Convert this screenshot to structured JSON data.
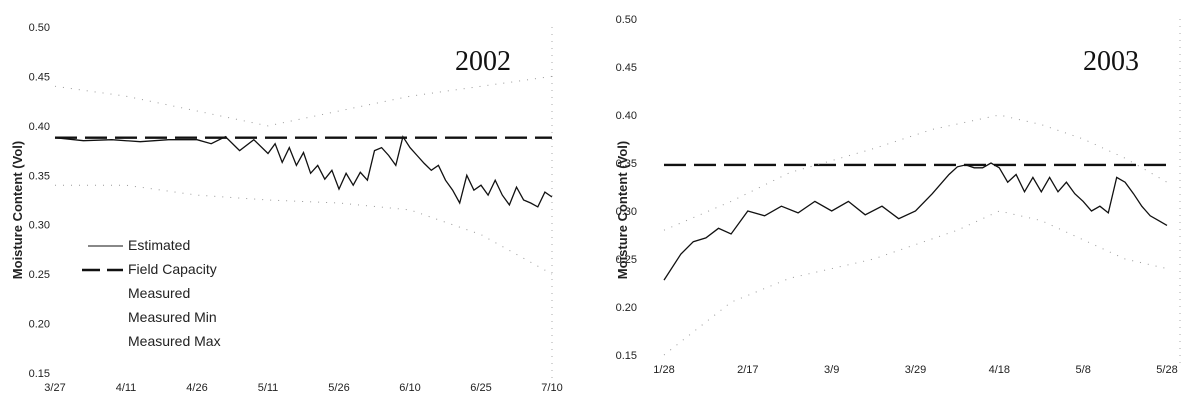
{
  "chart_data": [
    {
      "type": "line",
      "title": "2002",
      "ylabel": "Moisture Content (Vol)",
      "xlabel": "",
      "ylim": [
        0.15,
        0.5
      ],
      "yticks": [
        "0.50",
        "0.45",
        "0.40",
        "0.35",
        "0.30",
        "0.25",
        "0.20",
        "0.15"
      ],
      "yticks_values": [
        0.5,
        0.45,
        0.4,
        0.35,
        0.3,
        0.25,
        0.2,
        0.15
      ],
      "xticks": [
        "3/27",
        "4/11",
        "4/26",
        "5/11",
        "5/26",
        "6/10",
        "6/25",
        "7/10"
      ],
      "legend": {
        "placement": "lower-left",
        "entries": [
          "Estimated",
          "Field Capacity",
          "Measured",
          "Measured Min",
          "Measured Max"
        ]
      },
      "series": [
        {
          "name": "Estimated",
          "style": "solid",
          "x": [
            0,
            0.4,
            0.8,
            1.2,
            1.6,
            2.0,
            2.2,
            2.4,
            2.6,
            2.8,
            3.0,
            3.1,
            3.2,
            3.3,
            3.4,
            3.5,
            3.6,
            3.7,
            3.8,
            3.9,
            4.0,
            4.1,
            4.2,
            4.3,
            4.4,
            4.5,
            4.6,
            4.7,
            4.8,
            4.9,
            5.0,
            5.1,
            5.2,
            5.3,
            5.4,
            5.5,
            5.6,
            5.7,
            5.8,
            5.9,
            6.0,
            6.1,
            6.2,
            6.3,
            6.4,
            6.5,
            6.6,
            6.7,
            6.8,
            6.9,
            7.0
          ],
          "values": [
            0.388,
            0.385,
            0.386,
            0.384,
            0.386,
            0.386,
            0.382,
            0.389,
            0.375,
            0.386,
            0.372,
            0.382,
            0.363,
            0.378,
            0.36,
            0.373,
            0.352,
            0.36,
            0.346,
            0.355,
            0.336,
            0.352,
            0.34,
            0.353,
            0.345,
            0.375,
            0.378,
            0.37,
            0.36,
            0.389,
            0.378,
            0.37,
            0.362,
            0.355,
            0.36,
            0.345,
            0.335,
            0.322,
            0.35,
            0.335,
            0.34,
            0.33,
            0.345,
            0.33,
            0.32,
            0.338,
            0.325,
            0.322,
            0.318,
            0.333,
            0.328
          ]
        },
        {
          "name": "Field Capacity",
          "style": "dashed",
          "x": [
            0,
            7
          ],
          "values": [
            0.388,
            0.388
          ]
        },
        {
          "name": "Measured Min",
          "style": "dotted",
          "x": [
            0,
            1,
            2,
            3,
            4,
            5,
            6,
            7
          ],
          "values": [
            0.34,
            0.34,
            0.33,
            0.325,
            0.322,
            0.315,
            0.29,
            0.25
          ]
        },
        {
          "name": "Measured Max",
          "style": "dotted",
          "x": [
            0,
            1,
            2,
            3,
            4,
            5,
            6,
            7
          ],
          "values": [
            0.44,
            0.43,
            0.415,
            0.4,
            0.415,
            0.43,
            0.44,
            0.45
          ]
        }
      ]
    },
    {
      "type": "line",
      "title": "2003",
      "ylabel": "Moisture Content (Vol)",
      "xlabel": "",
      "ylim": [
        0.15,
        0.5
      ],
      "yticks": [
        "0.50",
        "0.45",
        "0.40",
        "0.35",
        "0.30",
        "0.25",
        "0.20",
        "0.15"
      ],
      "yticks_values": [
        0.5,
        0.45,
        0.4,
        0.35,
        0.3,
        0.25,
        0.2,
        0.15
      ],
      "xticks": [
        "1/28",
        "2/17",
        "3/9",
        "3/29",
        "4/18",
        "5/8",
        "5/28"
      ],
      "series": [
        {
          "name": "Estimated",
          "style": "solid",
          "x": [
            0,
            0.2,
            0.35,
            0.5,
            0.65,
            0.8,
            1.0,
            1.2,
            1.4,
            1.6,
            1.8,
            2.0,
            2.2,
            2.4,
            2.6,
            2.8,
            3.0,
            3.2,
            3.4,
            3.5,
            3.6,
            3.7,
            3.8,
            3.9,
            4.0,
            4.1,
            4.2,
            4.3,
            4.4,
            4.5,
            4.6,
            4.7,
            4.8,
            4.9,
            5.0,
            5.1,
            5.2,
            5.3,
            5.4,
            5.5,
            5.6,
            5.7,
            5.8,
            5.9,
            6.0
          ],
          "values": [
            0.228,
            0.255,
            0.268,
            0.272,
            0.282,
            0.276,
            0.3,
            0.295,
            0.305,
            0.298,
            0.31,
            0.3,
            0.31,
            0.296,
            0.305,
            0.292,
            0.3,
            0.318,
            0.338,
            0.346,
            0.348,
            0.345,
            0.345,
            0.35,
            0.345,
            0.33,
            0.338,
            0.32,
            0.335,
            0.32,
            0.335,
            0.32,
            0.33,
            0.318,
            0.31,
            0.3,
            0.305,
            0.298,
            0.335,
            0.33,
            0.318,
            0.305,
            0.295,
            0.29,
            0.285
          ]
        },
        {
          "name": "Field Capacity",
          "style": "dashed",
          "x": [
            0,
            6
          ],
          "values": [
            0.348,
            0.348
          ]
        },
        {
          "name": "Measured Min",
          "style": "dotted",
          "x": [
            0,
            0.8,
            1.5,
            2.5,
            3.5,
            4.0,
            4.5,
            5.0,
            5.5,
            6.0
          ],
          "values": [
            0.15,
            0.205,
            0.23,
            0.25,
            0.28,
            0.3,
            0.29,
            0.27,
            0.25,
            0.24
          ]
        },
        {
          "name": "Measured Max",
          "style": "dotted",
          "x": [
            0,
            0.8,
            1.5,
            2.5,
            3.2,
            4.0,
            4.5,
            5.0,
            5.5,
            6.0
          ],
          "values": [
            0.28,
            0.31,
            0.34,
            0.365,
            0.385,
            0.4,
            0.39,
            0.375,
            0.355,
            0.33
          ]
        }
      ]
    }
  ],
  "colors": {
    "line": "#111111",
    "dotted": "#999999"
  }
}
